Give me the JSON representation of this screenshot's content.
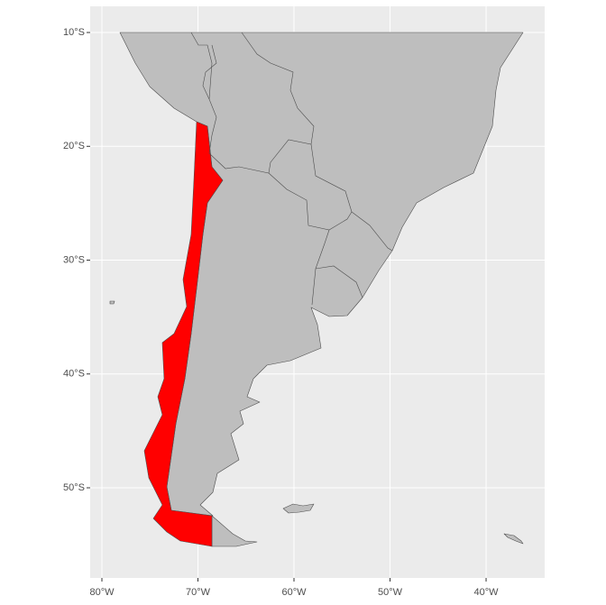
{
  "chart_data": {
    "type": "map",
    "xlim": [
      -81.22,
      -33.9
    ],
    "ylim": [
      -57.92,
      -7.7
    ],
    "xticks": [
      {
        "value": -80,
        "label": "80°W"
      },
      {
        "value": -70,
        "label": "70°W"
      },
      {
        "value": -60,
        "label": "60°W"
      },
      {
        "value": -50,
        "label": "50°W"
      },
      {
        "value": -40,
        "label": "40°W"
      }
    ],
    "yticks": [
      {
        "value": -10,
        "label": "10°S"
      },
      {
        "value": -20,
        "label": "20°S"
      },
      {
        "value": -30,
        "label": "30°S"
      },
      {
        "value": -40,
        "label": "40°S"
      },
      {
        "value": -50,
        "label": "50°S"
      }
    ],
    "grid": true
  }
}
